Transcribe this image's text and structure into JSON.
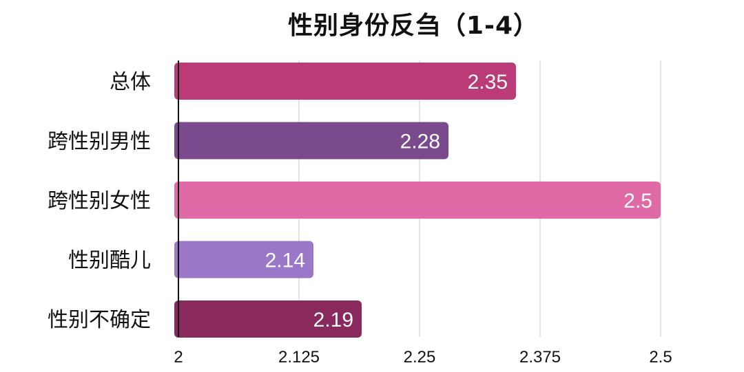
{
  "chart_data": {
    "type": "bar",
    "orientation": "horizontal",
    "title": "性别身份反刍（1-4）",
    "categories": [
      "总体",
      "跨性别男性",
      "跨性别女性",
      "性别酷儿",
      "性别不确定"
    ],
    "values": [
      2.35,
      2.28,
      2.5,
      2.14,
      2.19
    ],
    "value_labels": [
      "2.35",
      "2.28",
      "2.5",
      "2.14",
      "2.19"
    ],
    "colors": [
      "#bb3b77",
      "#7a4a8c",
      "#df6aa6",
      "#9b77c8",
      "#8a2a5c"
    ],
    "xlim": [
      2,
      2.5
    ],
    "xticks": [
      2,
      2.125,
      2.25,
      2.375,
      2.5
    ],
    "xtick_labels": [
      "2",
      "2.125",
      "2.25",
      "2.375",
      "2.5"
    ],
    "grid": true,
    "legend": "none"
  }
}
